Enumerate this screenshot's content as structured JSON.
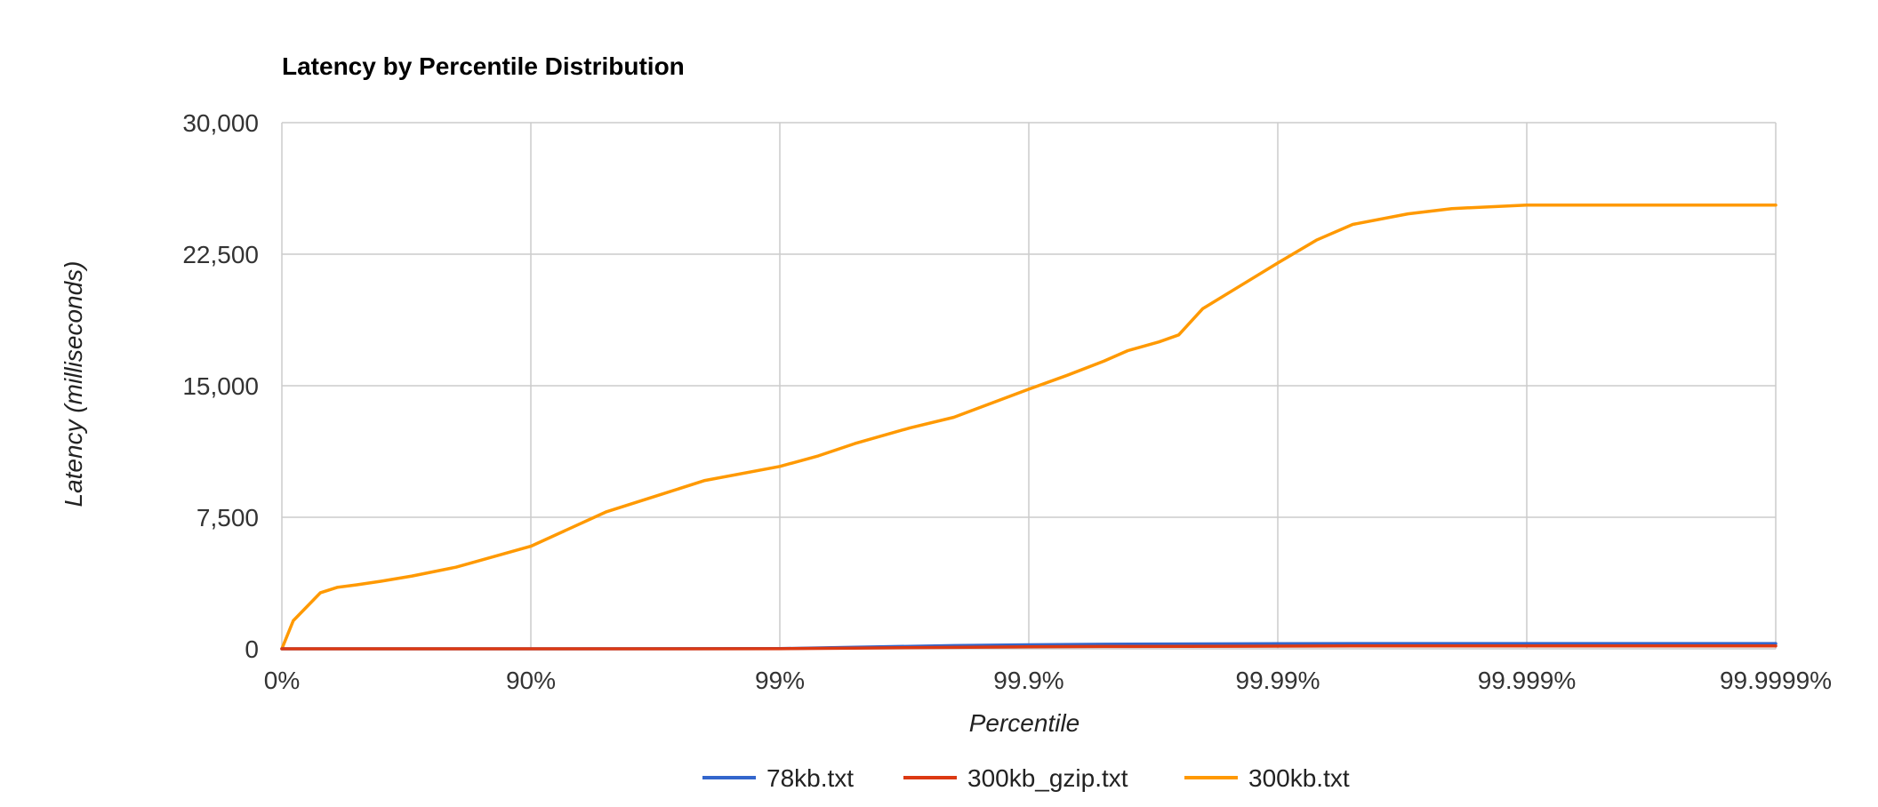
{
  "chart_data": {
    "type": "line",
    "title": "Latency by Percentile Distribution",
    "xlabel": "Percentile",
    "ylabel": "Latency (milliseconds)",
    "x_scale": "log-percentile",
    "x_tick_labels": [
      "0%",
      "90%",
      "99%",
      "99.9%",
      "99.99%",
      "99.999%",
      "99.9999%"
    ],
    "y_tick_labels": [
      "0",
      "7,500",
      "15,000",
      "22,500",
      "30,000"
    ],
    "ylim": [
      0,
      30000
    ],
    "grid": true,
    "legend_position": "bottom",
    "series": [
      {
        "name": "78kb.txt",
        "color": "#3366cc",
        "x": [
          "0%",
          "90%",
          "99%",
          "99.5%",
          "99.8%",
          "99.9%",
          "99.95%",
          "99.99%",
          "99.995%",
          "99.999%",
          "99.9999%"
        ],
        "values": [
          0,
          0,
          10,
          90,
          180,
          230,
          260,
          290,
          300,
          300,
          300
        ]
      },
      {
        "name": "300kb_gzip.txt",
        "color": "#dc3912",
        "x": [
          "0%",
          "90%",
          "99%",
          "99.5%",
          "99.8%",
          "99.9%",
          "99.95%",
          "99.99%",
          "99.995%",
          "99.999%",
          "99.9999%"
        ],
        "values": [
          0,
          0,
          5,
          40,
          80,
          110,
          130,
          150,
          160,
          160,
          160
        ]
      },
      {
        "name": "300kb.txt",
        "color": "#ff9900",
        "x": [
          "0%",
          "10%",
          "30%",
          "40%",
          "50%",
          "60%",
          "70%",
          "80%",
          "90%",
          "95%",
          "97%",
          "98%",
          "99%",
          "99.3%",
          "99.5%",
          "99.7%",
          "99.8%",
          "99.9%",
          "99.93%",
          "99.95%",
          "99.96%",
          "99.97%",
          "99.975%",
          "99.98%",
          "99.99%",
          "99.993%",
          "99.995%",
          "99.997%",
          "99.998%",
          "99.999%",
          "99.9999%"
        ],
        "values": [
          0,
          1600,
          3200,
          3500,
          3650,
          3850,
          4150,
          4650,
          5850,
          7800,
          8800,
          9600,
          10400,
          11000,
          11700,
          12600,
          13200,
          14800,
          15600,
          16400,
          17000,
          17500,
          17900,
          19400,
          22000,
          23300,
          24200,
          24800,
          25100,
          25300,
          25300
        ]
      }
    ]
  }
}
